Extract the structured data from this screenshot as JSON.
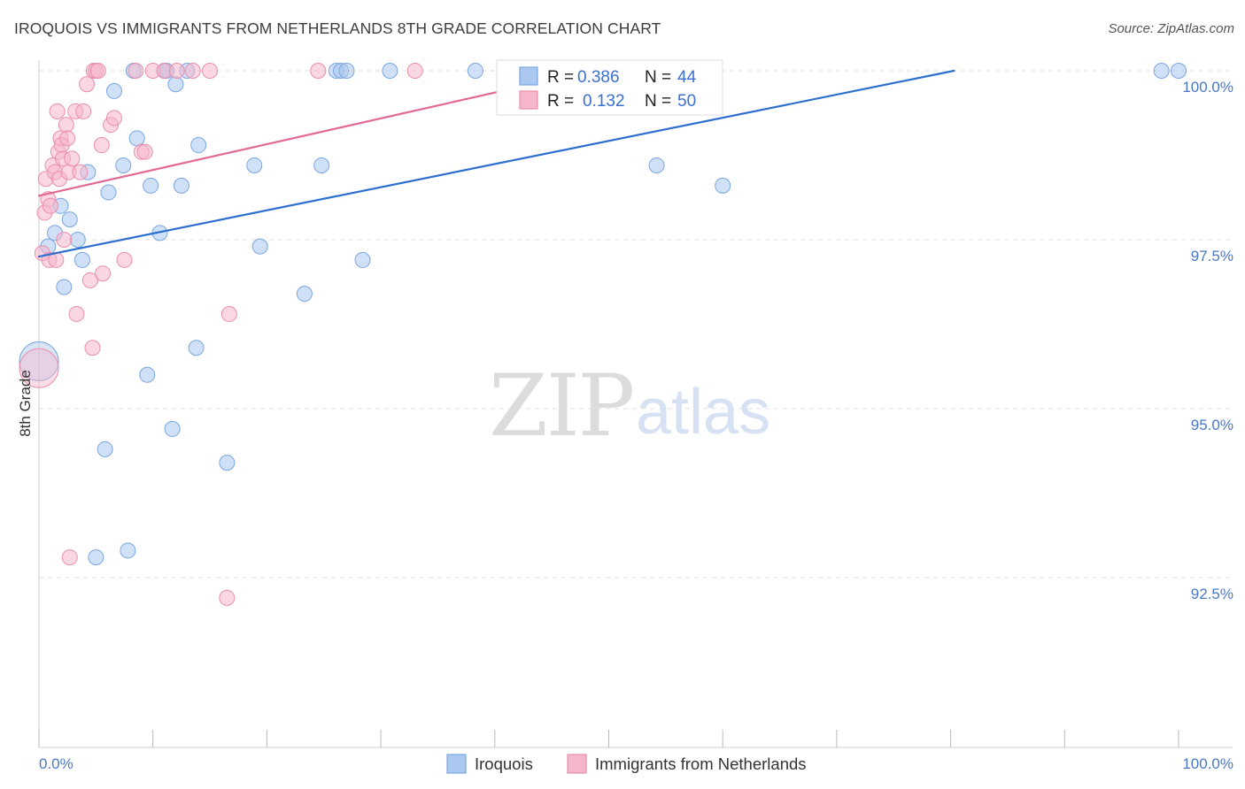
{
  "title": "IROQUOIS VS IMMIGRANTS FROM NETHERLANDS 8TH GRADE CORRELATION CHART",
  "source": "Source: ZipAtlas.com",
  "watermark": {
    "zip": "ZIP",
    "atlas": "atlas"
  },
  "colors": {
    "iroquois_fill": "#aac8f0",
    "iroquois_stroke": "#7aa6e0",
    "iroquois_line": "#2d6fcf",
    "netherlands_fill": "#f6b6ca",
    "netherlands_stroke": "#ea8fae",
    "netherlands_line": "#e36894",
    "tick_label": "#4a78c8",
    "grid": "#e2e2e2"
  },
  "stats": [
    {
      "r_label": "R =",
      "r_value": "0.386",
      "n_label": "N =",
      "n_value": "44"
    },
    {
      "r_label": "R =",
      "r_value": "0.132",
      "n_label": "N =",
      "n_value": "50"
    }
  ],
  "chart_data": {
    "type": "scatter",
    "title": "IROQUOIS VS IMMIGRANTS FROM NETHERLANDS 8TH GRADE CORRELATION CHART",
    "xlabel": "",
    "ylabel": "8th Grade",
    "xlim": [
      0,
      100
    ],
    "ylim": [
      90.4,
      100.4
    ],
    "x_tick_labels": [
      "0.0%",
      "100.0%"
    ],
    "y_ticks": [
      100.0,
      97.5,
      95.0,
      92.5
    ],
    "y_tick_labels": [
      "100.0%",
      "97.5%",
      "95.0%",
      "92.5%"
    ],
    "grid": true,
    "legend": "bottom",
    "series": [
      {
        "name": "Iroquois",
        "trend": {
          "x": [
            0,
            80.3
          ],
          "y": [
            97.25,
            100.0
          ]
        },
        "points": [
          {
            "x": 0,
            "y": 95.7,
            "big": true
          },
          {
            "x": 0.8,
            "y": 97.4
          },
          {
            "x": 1.4,
            "y": 97.6
          },
          {
            "x": 1.9,
            "y": 98.0
          },
          {
            "x": 2.2,
            "y": 96.8
          },
          {
            "x": 2.7,
            "y": 97.8
          },
          {
            "x": 3.4,
            "y": 97.5
          },
          {
            "x": 3.8,
            "y": 97.2
          },
          {
            "x": 4.3,
            "y": 98.5
          },
          {
            "x": 5.8,
            "y": 94.4
          },
          {
            "x": 6.1,
            "y": 98.2
          },
          {
            "x": 5.0,
            "y": 92.8
          },
          {
            "x": 6.6,
            "y": 99.7
          },
          {
            "x": 7.4,
            "y": 98.6
          },
          {
            "x": 7.8,
            "y": 92.9
          },
          {
            "x": 8.3,
            "y": 100.0
          },
          {
            "x": 8.6,
            "y": 99.0
          },
          {
            "x": 9.5,
            "y": 95.5
          },
          {
            "x": 9.8,
            "y": 98.3
          },
          {
            "x": 10.6,
            "y": 97.6
          },
          {
            "x": 11.0,
            "y": 100.0
          },
          {
            "x": 11.2,
            "y": 100.0
          },
          {
            "x": 11.7,
            "y": 94.7
          },
          {
            "x": 12.0,
            "y": 99.8
          },
          {
            "x": 12.5,
            "y": 98.3
          },
          {
            "x": 13.0,
            "y": 100.0
          },
          {
            "x": 13.8,
            "y": 95.9
          },
          {
            "x": 14.0,
            "y": 98.9
          },
          {
            "x": 16.5,
            "y": 94.2
          },
          {
            "x": 18.9,
            "y": 98.6
          },
          {
            "x": 19.4,
            "y": 97.4
          },
          {
            "x": 23.3,
            "y": 96.7
          },
          {
            "x": 24.8,
            "y": 98.6
          },
          {
            "x": 26.1,
            "y": 100.0
          },
          {
            "x": 26.5,
            "y": 100.0
          },
          {
            "x": 27.0,
            "y": 100.0
          },
          {
            "x": 28.4,
            "y": 97.2
          },
          {
            "x": 30.8,
            "y": 100.0
          },
          {
            "x": 38.3,
            "y": 100.0
          },
          {
            "x": 54.2,
            "y": 98.6
          },
          {
            "x": 60.0,
            "y": 98.3
          },
          {
            "x": 98.5,
            "y": 100.0
          },
          {
            "x": 100.0,
            "y": 100.0
          }
        ]
      },
      {
        "name": "Immigrants from Netherlands",
        "trend": {
          "x": [
            0,
            40.6
          ],
          "y": [
            98.15,
            99.7
          ]
        },
        "points": [
          {
            "x": 0,
            "y": 95.6,
            "big": true
          },
          {
            "x": 0.3,
            "y": 97.3
          },
          {
            "x": 0.5,
            "y": 97.9
          },
          {
            "x": 0.6,
            "y": 98.4
          },
          {
            "x": 0.8,
            "y": 98.1
          },
          {
            "x": 0.9,
            "y": 97.2
          },
          {
            "x": 1.0,
            "y": 98.0
          },
          {
            "x": 1.2,
            "y": 98.6
          },
          {
            "x": 1.4,
            "y": 98.5
          },
          {
            "x": 1.5,
            "y": 97.2
          },
          {
            "x": 1.6,
            "y": 99.4
          },
          {
            "x": 1.7,
            "y": 98.8
          },
          {
            "x": 1.8,
            "y": 98.4
          },
          {
            "x": 1.9,
            "y": 99.0
          },
          {
            "x": 2.0,
            "y": 98.9
          },
          {
            "x": 2.1,
            "y": 98.7
          },
          {
            "x": 2.2,
            "y": 97.5
          },
          {
            "x": 2.4,
            "y": 99.2
          },
          {
            "x": 2.5,
            "y": 99.0
          },
          {
            "x": 2.6,
            "y": 98.5
          },
          {
            "x": 2.7,
            "y": 92.8
          },
          {
            "x": 2.9,
            "y": 98.7
          },
          {
            "x": 3.2,
            "y": 99.4
          },
          {
            "x": 3.3,
            "y": 96.4
          },
          {
            "x": 3.6,
            "y": 98.5
          },
          {
            "x": 3.9,
            "y": 99.4
          },
          {
            "x": 4.2,
            "y": 99.8
          },
          {
            "x": 4.5,
            "y": 96.9
          },
          {
            "x": 4.7,
            "y": 95.9
          },
          {
            "x": 4.8,
            "y": 100.0
          },
          {
            "x": 5.0,
            "y": 100.0
          },
          {
            "x": 5.2,
            "y": 100.0
          },
          {
            "x": 5.5,
            "y": 98.9
          },
          {
            "x": 5.6,
            "y": 97.0
          },
          {
            "x": 6.3,
            "y": 99.2
          },
          {
            "x": 6.6,
            "y": 99.3
          },
          {
            "x": 7.5,
            "y": 97.2
          },
          {
            "x": 8.5,
            "y": 100.0
          },
          {
            "x": 9.0,
            "y": 98.8
          },
          {
            "x": 9.3,
            "y": 98.8
          },
          {
            "x": 10.0,
            "y": 100.0
          },
          {
            "x": 11.0,
            "y": 100.0
          },
          {
            "x": 12.1,
            "y": 100.0
          },
          {
            "x": 13.5,
            "y": 100.0
          },
          {
            "x": 15.0,
            "y": 100.0
          },
          {
            "x": 16.5,
            "y": 92.2
          },
          {
            "x": 16.7,
            "y": 96.4
          },
          {
            "x": 24.5,
            "y": 100.0
          },
          {
            "x": 33.0,
            "y": 100.0
          }
        ]
      }
    ]
  }
}
